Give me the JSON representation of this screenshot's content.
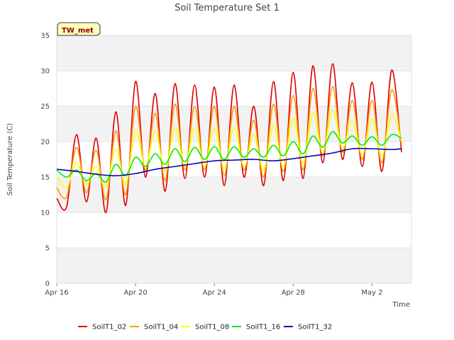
{
  "chart_data": {
    "type": "line",
    "title": "Soil Temperature Set 1",
    "xlabel": "Time",
    "ylabel": "Soil Temperature (C)",
    "badge": "TW_met",
    "ylim": [
      0,
      35
    ],
    "yticks": [
      0,
      5,
      10,
      15,
      20,
      25,
      30,
      35
    ],
    "xlim": [
      "2024-04-16",
      "2024-05-04"
    ],
    "xticks": [
      {
        "date": "2024-04-16",
        "label": "Apr 16"
      },
      {
        "date": "2024-04-20",
        "label": "Apr 20"
      },
      {
        "date": "2024-04-24",
        "label": "Apr 24"
      },
      {
        "date": "2024-04-28",
        "label": "Apr 28"
      },
      {
        "date": "2024-05-02",
        "label": "May 2"
      }
    ],
    "grid": true,
    "legend_position": "bottom",
    "series": [
      {
        "name": "SoilT1_02",
        "color": "#dd0000",
        "x": [
          "2024-04-16",
          "2024-04-16T12:00",
          "2024-04-17",
          "2024-04-17T12:00",
          "2024-04-18",
          "2024-04-18T12:00",
          "2024-04-19",
          "2024-04-19T12:00",
          "2024-04-20",
          "2024-04-20T12:00",
          "2024-04-21",
          "2024-04-21T12:00",
          "2024-04-22",
          "2024-04-22T12:00",
          "2024-04-23",
          "2024-04-23T12:00",
          "2024-04-24",
          "2024-04-24T12:00",
          "2024-04-25",
          "2024-04-25T12:00",
          "2024-04-26",
          "2024-04-26T12:00",
          "2024-04-27",
          "2024-04-27T12:00",
          "2024-04-28",
          "2024-04-28T12:00",
          "2024-04-29",
          "2024-04-29T12:00",
          "2024-04-30",
          "2024-04-30T12:00",
          "2024-05-01",
          "2024-05-01T12:00",
          "2024-05-02",
          "2024-05-02T12:00",
          "2024-05-03",
          "2024-05-03T12:00"
        ],
        "values": [
          12,
          10.8,
          21,
          11.5,
          20.5,
          10,
          24.2,
          11,
          28.5,
          15,
          26.8,
          13,
          28.2,
          14.8,
          28,
          15,
          27.7,
          13.8,
          28,
          15,
          25,
          13.8,
          28.5,
          14.5,
          29.8,
          14.8,
          30.7,
          17,
          31,
          17.5,
          28.3,
          16.5,
          28.4,
          15.8,
          30.1,
          18.5
        ]
      },
      {
        "name": "SoilT1_04",
        "color": "#ff9900",
        "x": [
          "2024-04-16",
          "2024-04-16T12:00",
          "2024-04-17",
          "2024-04-17T12:00",
          "2024-04-18",
          "2024-04-18T12:00",
          "2024-04-19",
          "2024-04-19T12:00",
          "2024-04-20",
          "2024-04-20T12:00",
          "2024-04-21",
          "2024-04-21T12:00",
          "2024-04-22",
          "2024-04-22T12:00",
          "2024-04-23",
          "2024-04-23T12:00",
          "2024-04-24",
          "2024-04-24T12:00",
          "2024-04-25",
          "2024-04-25T12:00",
          "2024-04-26",
          "2024-04-26T12:00",
          "2024-04-27",
          "2024-04-27T12:00",
          "2024-04-28",
          "2024-04-28T12:00",
          "2024-04-29",
          "2024-04-29T12:00",
          "2024-04-30",
          "2024-04-30T12:00",
          "2024-05-01",
          "2024-05-01T12:00",
          "2024-05-02",
          "2024-05-02T12:00",
          "2024-05-03",
          "2024-05-03T12:00"
        ],
        "values": [
          13.5,
          12.2,
          19.2,
          12.8,
          18.8,
          11.8,
          21.5,
          12.5,
          25,
          16,
          24,
          14.5,
          25.3,
          16,
          25,
          16,
          25,
          15.2,
          25,
          16,
          23,
          15,
          25.3,
          15.8,
          26.5,
          16,
          27.5,
          18,
          27.8,
          18.5,
          25.8,
          17.5,
          25.8,
          17,
          27.3,
          19.5
        ]
      },
      {
        "name": "SoilT1_08",
        "color": "#ffff00",
        "x": [
          "2024-04-16",
          "2024-04-16T12:00",
          "2024-04-17",
          "2024-04-17T12:00",
          "2024-04-18",
          "2024-04-18T12:00",
          "2024-04-19",
          "2024-04-19T12:00",
          "2024-04-20",
          "2024-04-20T12:00",
          "2024-04-21",
          "2024-04-21T12:00",
          "2024-04-22",
          "2024-04-22T12:00",
          "2024-04-23",
          "2024-04-23T12:00",
          "2024-04-24",
          "2024-04-24T12:00",
          "2024-04-25",
          "2024-04-25T12:00",
          "2024-04-26",
          "2024-04-26T12:00",
          "2024-04-27",
          "2024-04-27T12:00",
          "2024-04-28",
          "2024-04-28T12:00",
          "2024-04-29",
          "2024-04-29T12:00",
          "2024-04-30",
          "2024-04-30T12:00",
          "2024-05-01",
          "2024-05-01T12:00",
          "2024-05-02",
          "2024-05-02T12:00",
          "2024-05-03",
          "2024-05-03T12:00"
        ],
        "values": [
          15,
          13.5,
          17,
          14,
          16.5,
          13.5,
          19,
          14,
          21.5,
          16.5,
          21.5,
          15.8,
          22,
          16.5,
          22,
          16.5,
          22,
          16.2,
          22,
          16.5,
          21,
          16,
          22.3,
          16.5,
          23.3,
          17,
          24,
          18.5,
          24.5,
          19,
          23,
          18.2,
          23.2,
          18,
          23.8,
          20
        ]
      },
      {
        "name": "SoilT1_16",
        "color": "#00ee00",
        "x": [
          "2024-04-16",
          "2024-04-16T12:00",
          "2024-04-17",
          "2024-04-17T12:00",
          "2024-04-18",
          "2024-04-18T12:00",
          "2024-04-19",
          "2024-04-19T12:00",
          "2024-04-20",
          "2024-04-20T12:00",
          "2024-04-21",
          "2024-04-21T12:00",
          "2024-04-22",
          "2024-04-22T12:00",
          "2024-04-23",
          "2024-04-23T12:00",
          "2024-04-24",
          "2024-04-24T12:00",
          "2024-04-25",
          "2024-04-25T12:00",
          "2024-04-26",
          "2024-04-26T12:00",
          "2024-04-27",
          "2024-04-27T12:00",
          "2024-04-28",
          "2024-04-28T12:00",
          "2024-04-29",
          "2024-04-29T12:00",
          "2024-04-30",
          "2024-04-30T12:00",
          "2024-05-01",
          "2024-05-01T12:00",
          "2024-05-02",
          "2024-05-02T12:00",
          "2024-05-03",
          "2024-05-03T12:00"
        ],
        "values": [
          16,
          15,
          16,
          14.5,
          15.5,
          14.3,
          16.8,
          15.2,
          17.8,
          16.5,
          18.3,
          16.8,
          19,
          17.2,
          19.2,
          17.5,
          19.3,
          17.5,
          19.3,
          17.8,
          19,
          17.8,
          19.5,
          18,
          20,
          18.3,
          20.8,
          19.2,
          21.4,
          19.8,
          20.8,
          19.5,
          20.7,
          19.5,
          21,
          20.5
        ]
      },
      {
        "name": "SoilT1_32",
        "color": "#0000bb",
        "x": [
          "2024-04-16",
          "2024-04-17",
          "2024-04-18",
          "2024-04-19",
          "2024-04-20",
          "2024-04-21",
          "2024-04-22",
          "2024-04-23",
          "2024-04-24",
          "2024-04-25",
          "2024-04-26",
          "2024-04-27",
          "2024-04-28",
          "2024-04-29",
          "2024-04-30",
          "2024-05-01",
          "2024-05-02",
          "2024-05-03",
          "2024-05-03T12:00"
        ],
        "values": [
          16.1,
          15.8,
          15.4,
          15.2,
          15.5,
          16.1,
          16.5,
          16.9,
          17.3,
          17.4,
          17.5,
          17.3,
          17.6,
          18,
          18.4,
          19,
          19,
          18.9,
          19
        ]
      }
    ]
  }
}
